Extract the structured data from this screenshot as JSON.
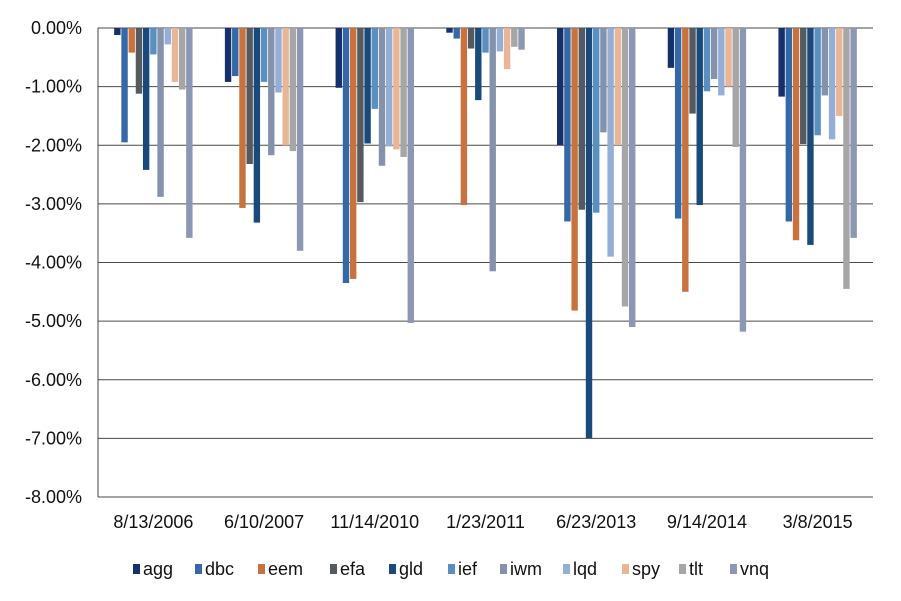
{
  "chart_data": {
    "type": "bar",
    "categories": [
      "8/13/2006",
      "6/10/2007",
      "11/14/2010",
      "1/23/2011",
      "6/23/2013",
      "9/14/2014",
      "3/8/2015"
    ],
    "ylim": [
      -8,
      0
    ],
    "yticks": [
      0,
      -1,
      -2,
      -3,
      -4,
      -5,
      -6,
      -7,
      -8
    ],
    "ytick_labels": [
      "0.00%",
      "-1.00%",
      "-2.00%",
      "-3.00%",
      "-4.00%",
      "-5.00%",
      "-6.00%",
      "-7.00%",
      "-8.00%"
    ],
    "y_unit": "%",
    "grid": true,
    "legend_position": "bottom",
    "series": [
      {
        "name": "agg",
        "color": "#15306b",
        "values": [
          -0.12,
          -0.92,
          -1.02,
          -0.08,
          -2.0,
          -0.68,
          -1.17
        ]
      },
      {
        "name": "dbc",
        "color": "#3468a6",
        "values": [
          -1.95,
          -0.82,
          -4.35,
          -0.18,
          -3.3,
          -3.25,
          -3.3
        ]
      },
      {
        "name": "eem",
        "color": "#c8733f",
        "values": [
          -0.42,
          -3.07,
          -4.28,
          -3.02,
          -4.82,
          -4.5,
          -3.62
        ]
      },
      {
        "name": "efa",
        "color": "#555a60",
        "values": [
          -1.12,
          -2.32,
          -2.97,
          -0.35,
          -3.1,
          -1.46,
          -1.98
        ]
      },
      {
        "name": "gld",
        "color": "#1a4a7c",
        "values": [
          -2.42,
          -3.32,
          -1.97,
          -1.23,
          -7.0,
          -3.02,
          -3.7
        ]
      },
      {
        "name": "ief",
        "color": "#5a8fc0",
        "values": [
          -0.45,
          -0.92,
          -1.38,
          -0.42,
          -3.15,
          -1.08,
          -1.83
        ]
      },
      {
        "name": "iwm",
        "color": "#8592ab",
        "values": [
          -2.88,
          -2.17,
          -2.35,
          -4.15,
          -1.78,
          -0.87,
          -1.15
        ]
      },
      {
        "name": "lqd",
        "color": "#95aed6",
        "values": [
          -0.28,
          -1.1,
          -2.02,
          -0.4,
          -3.9,
          -1.15,
          -1.9
        ]
      },
      {
        "name": "spy",
        "color": "#e9b597",
        "values": [
          -0.92,
          -2.0,
          -2.07,
          -0.7,
          -2.0,
          -1.0,
          -1.5
        ]
      },
      {
        "name": "tlt",
        "color": "#a6a6a6",
        "values": [
          -1.05,
          -2.1,
          -2.2,
          -0.32,
          -4.75,
          -2.03,
          -4.45
        ]
      },
      {
        "name": "vnq",
        "color": "#8c97b4",
        "values": [
          -3.58,
          -3.8,
          -5.03,
          -0.37,
          -5.1,
          -5.18,
          -3.58
        ]
      }
    ]
  }
}
